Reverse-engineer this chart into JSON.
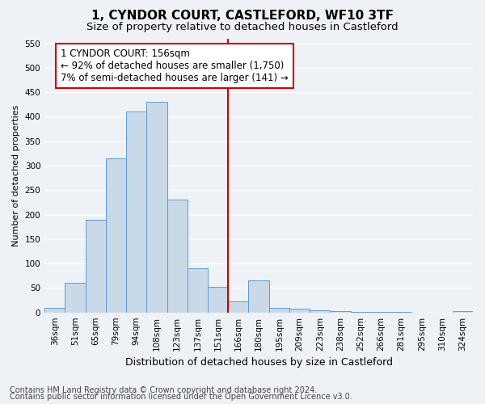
{
  "title": "1, CYNDOR COURT, CASTLEFORD, WF10 3TF",
  "subtitle": "Size of property relative to detached houses in Castleford",
  "xlabel": "Distribution of detached houses by size in Castleford",
  "ylabel": "Number of detached properties",
  "bar_labels": [
    "36sqm",
    "51sqm",
    "65sqm",
    "79sqm",
    "94sqm",
    "108sqm",
    "123sqm",
    "137sqm",
    "151sqm",
    "166sqm",
    "180sqm",
    "195sqm",
    "209sqm",
    "223sqm",
    "238sqm",
    "252sqm",
    "266sqm",
    "281sqm",
    "295sqm",
    "310sqm",
    "324sqm"
  ],
  "bar_values": [
    10,
    60,
    190,
    315,
    410,
    430,
    230,
    90,
    52,
    22,
    65,
    10,
    7,
    5,
    3,
    1,
    1,
    1,
    0,
    0,
    3
  ],
  "bar_color": "#c9d9e8",
  "bar_edge_color": "#5b9bd5",
  "vline_color": "#cc0000",
  "vline_pos": 8.5,
  "annotation_text": "1 CYNDOR COURT: 156sqm\n← 92% of detached houses are smaller (1,750)\n7% of semi-detached houses are larger (141) →",
  "annotation_box_color": "#ffffff",
  "annotation_box_edge": "#cc0000",
  "ylim": [
    0,
    560
  ],
  "yticks": [
    0,
    50,
    100,
    150,
    200,
    250,
    300,
    350,
    400,
    450,
    500,
    550
  ],
  "footer_line1": "Contains HM Land Registry data © Crown copyright and database right 2024.",
  "footer_line2": "Contains public sector information licensed under the Open Government Licence v3.0.",
  "background_color": "#eef2f7",
  "grid_color": "#ffffff",
  "title_fontsize": 11,
  "subtitle_fontsize": 9.5,
  "xlabel_fontsize": 9,
  "ylabel_fontsize": 8,
  "tick_fontsize": 7.5,
  "annotation_fontsize": 8.5,
  "footer_fontsize": 7
}
